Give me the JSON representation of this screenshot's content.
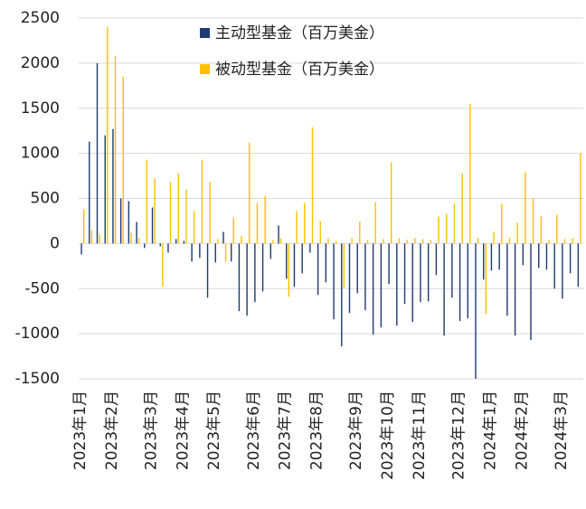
{
  "chart_data": {
    "type": "bar",
    "categories": [
      "2023年1月",
      null,
      null,
      null,
      "2023年2月",
      null,
      null,
      null,
      null,
      "2023年3月",
      null,
      null,
      null,
      "2023年4月",
      null,
      null,
      null,
      "2023年5月",
      null,
      null,
      null,
      null,
      "2023年6月",
      null,
      null,
      null,
      "2023年7月",
      null,
      null,
      null,
      "2023年8月",
      null,
      null,
      null,
      null,
      "2023年9月",
      null,
      null,
      null,
      "2023年10月",
      null,
      null,
      null,
      "2023年11月",
      null,
      null,
      null,
      null,
      "2023年12月",
      null,
      null,
      null,
      "2024年1月",
      null,
      null,
      null,
      "2024年2月",
      null,
      null,
      null,
      null,
      "2024年3月",
      null,
      null
    ],
    "series": [
      {
        "name": "主动型基金（百万美金）",
        "color": "#1f3a70",
        "values": [
          -120,
          1130,
          2000,
          1200,
          1270,
          500,
          470,
          240,
          -50,
          400,
          -30,
          -100,
          50,
          30,
          -200,
          -160,
          -600,
          -210,
          130,
          -200,
          -750,
          -800,
          -650,
          -530,
          -170,
          200,
          -390,
          -480,
          -330,
          -100,
          -570,
          -430,
          -840,
          -1140,
          -770,
          -550,
          -740,
          -1010,
          -930,
          -450,
          -910,
          -670,
          -870,
          -650,
          -640,
          -350,
          -1020,
          -600,
          -860,
          -830,
          -1500,
          -400,
          -300,
          -290,
          -800,
          -1020,
          -240,
          -1070,
          -270,
          -290,
          -500,
          -610,
          -330,
          -480
        ]
      },
      {
        "name": "被动型基金（百万美金）",
        "color": "#ffc000",
        "values": [
          380,
          150,
          100,
          2400,
          2080,
          1850,
          120,
          60,
          930,
          720,
          -480,
          680,
          780,
          600,
          360,
          930,
          680,
          50,
          -200,
          290,
          80,
          1120,
          450,
          530,
          40,
          60,
          -590,
          360,
          450,
          1290,
          250,
          60,
          30,
          -490,
          60,
          240,
          40,
          460,
          50,
          900,
          60,
          40,
          60,
          50,
          40,
          300,
          330,
          440,
          780,
          1550,
          60,
          -780,
          130,
          440,
          60,
          230,
          790,
          500,
          300,
          40,
          320,
          50,
          60,
          1000
        ]
      }
    ],
    "ylim": [
      -1500,
      2500
    ],
    "yticks": [
      -1500,
      -1000,
      -500,
      0,
      500,
      1000,
      1500,
      2000,
      2500
    ],
    "grid": true
  }
}
